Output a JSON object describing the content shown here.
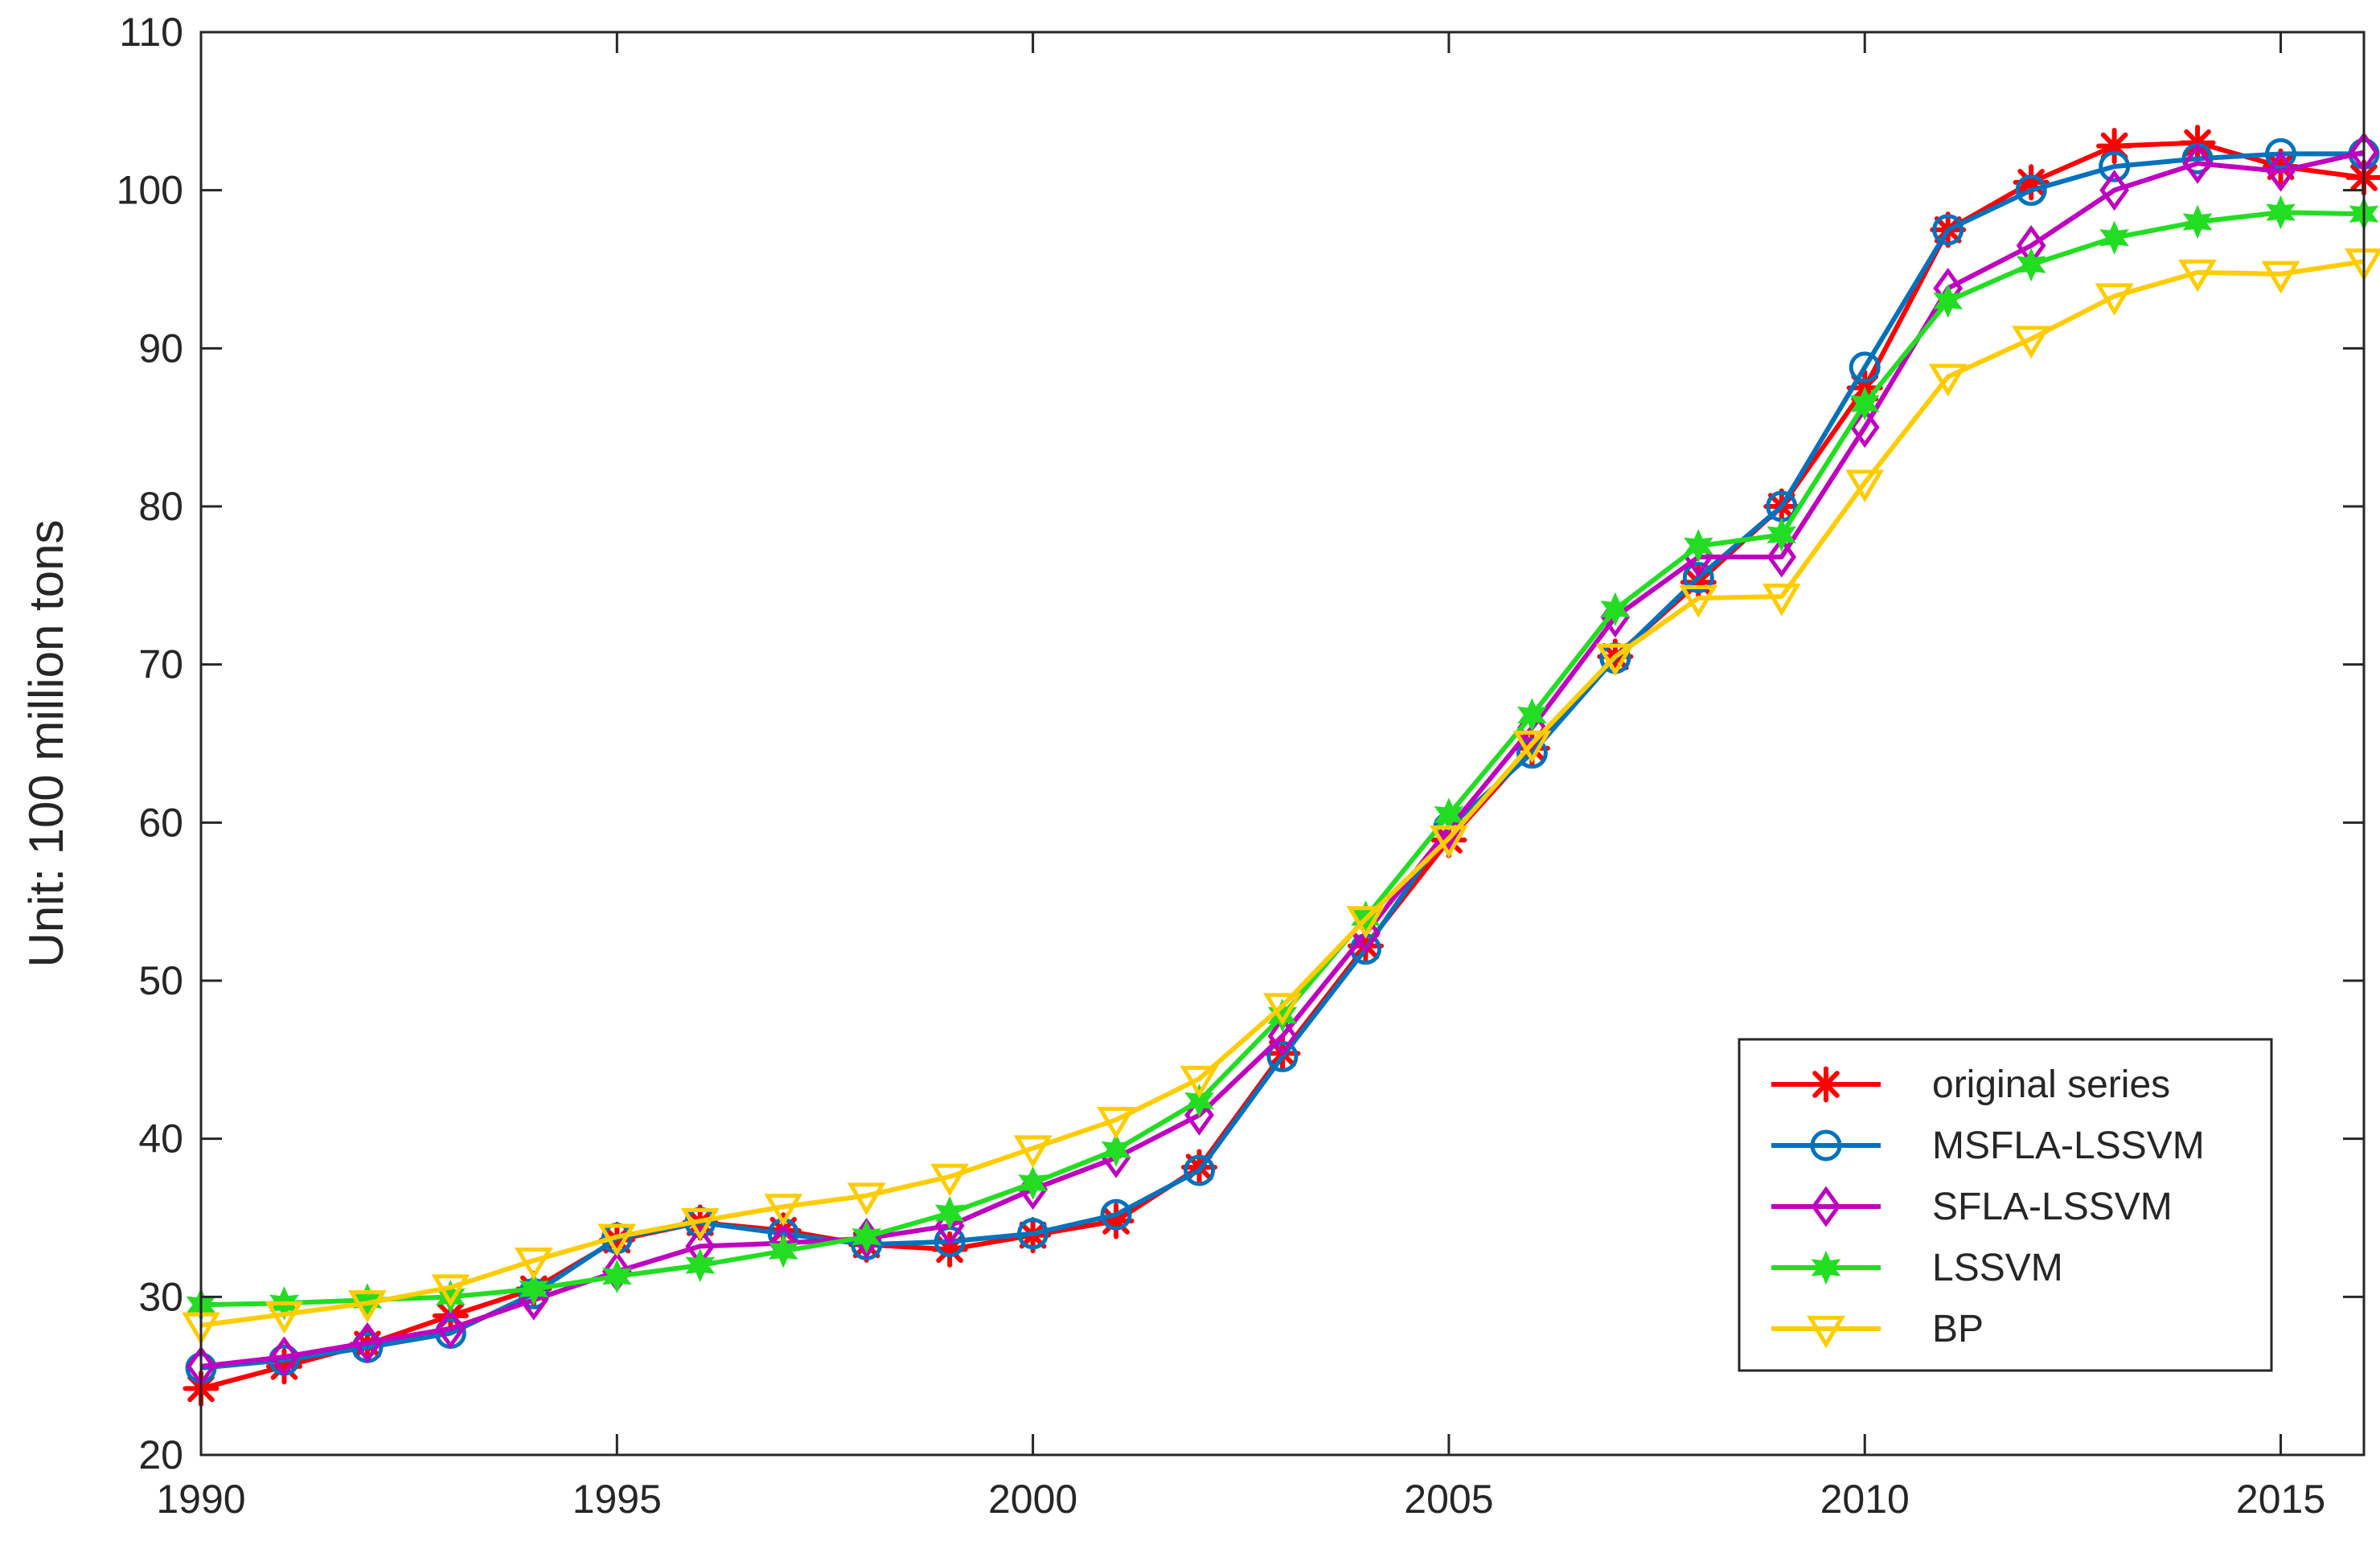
{
  "chart_data": {
    "type": "line",
    "title": "",
    "xlabel": "",
    "ylabel": "Unit: 100 million tons",
    "xlim": [
      1990,
      2016
    ],
    "ylim": [
      20,
      110
    ],
    "x_ticks": [
      1990,
      1995,
      2000,
      2005,
      2010,
      2015
    ],
    "y_ticks": [
      20,
      30,
      40,
      50,
      60,
      70,
      80,
      90,
      100,
      110
    ],
    "grid": false,
    "legend_position": "bottom-right",
    "x": [
      1990,
      1991,
      1992,
      1993,
      1994,
      1995,
      1996,
      1997,
      1998,
      1999,
      2000,
      2001,
      2002,
      2003,
      2004,
      2005,
      2006,
      2007,
      2008,
      2009,
      2010,
      2011,
      2012,
      2013,
      2014,
      2015,
      2016
    ],
    "series": [
      {
        "name": "original series",
        "color": "#ff0000",
        "marker": "asterisk",
        "values": [
          24.2,
          25.6,
          27.0,
          28.8,
          30.5,
          33.6,
          34.7,
          34.2,
          33.3,
          33.0,
          33.9,
          34.8,
          38.2,
          45.4,
          52.2,
          58.9,
          64.7,
          70.5,
          75.2,
          80.0,
          87.5,
          97.5,
          100.5,
          102.8,
          103.0,
          101.5,
          100.8
        ]
      },
      {
        "name": "MSFLA-LSSVM",
        "color": "#0072bd",
        "marker": "circle",
        "values": [
          25.5,
          26.0,
          26.8,
          27.7,
          30.2,
          33.7,
          34.7,
          34.0,
          33.3,
          33.5,
          34.0,
          35.2,
          38.0,
          45.2,
          52.0,
          59.7,
          64.4,
          70.4,
          75.5,
          80.0,
          88.8,
          97.5,
          100.0,
          101.5,
          102.0,
          102.3,
          102.3
        ]
      },
      {
        "name": "SFLA-LSSVM",
        "color": "#c000c0",
        "marker": "diamond",
        "values": [
          25.6,
          26.2,
          27.1,
          28.0,
          29.8,
          31.6,
          33.2,
          33.4,
          33.7,
          34.5,
          36.8,
          38.8,
          41.5,
          46.5,
          53.0,
          59.6,
          66.0,
          73.0,
          76.8,
          76.8,
          85.0,
          93.8,
          96.5,
          100.0,
          101.7,
          101.2,
          102.4
        ]
      },
      {
        "name": "LSSVM",
        "color": "#22dd22",
        "marker": "star",
        "values": [
          29.5,
          29.6,
          29.8,
          30.0,
          30.5,
          31.3,
          32.0,
          32.9,
          33.8,
          35.3,
          37.2,
          39.3,
          42.4,
          47.8,
          54.0,
          60.5,
          66.8,
          73.5,
          77.5,
          78.2,
          86.5,
          93.0,
          95.3,
          97.0,
          98.0,
          98.6,
          98.5
        ]
      },
      {
        "name": "BP",
        "color": "#ffcc00",
        "marker": "triangle-down",
        "values": [
          28.2,
          28.9,
          29.6,
          30.6,
          32.3,
          33.8,
          34.8,
          35.7,
          36.4,
          37.6,
          39.4,
          41.2,
          43.8,
          48.4,
          53.9,
          59.0,
          65.0,
          70.5,
          74.2,
          74.3,
          81.5,
          88.2,
          90.6,
          93.3,
          94.8,
          94.7,
          95.5
        ]
      }
    ]
  }
}
